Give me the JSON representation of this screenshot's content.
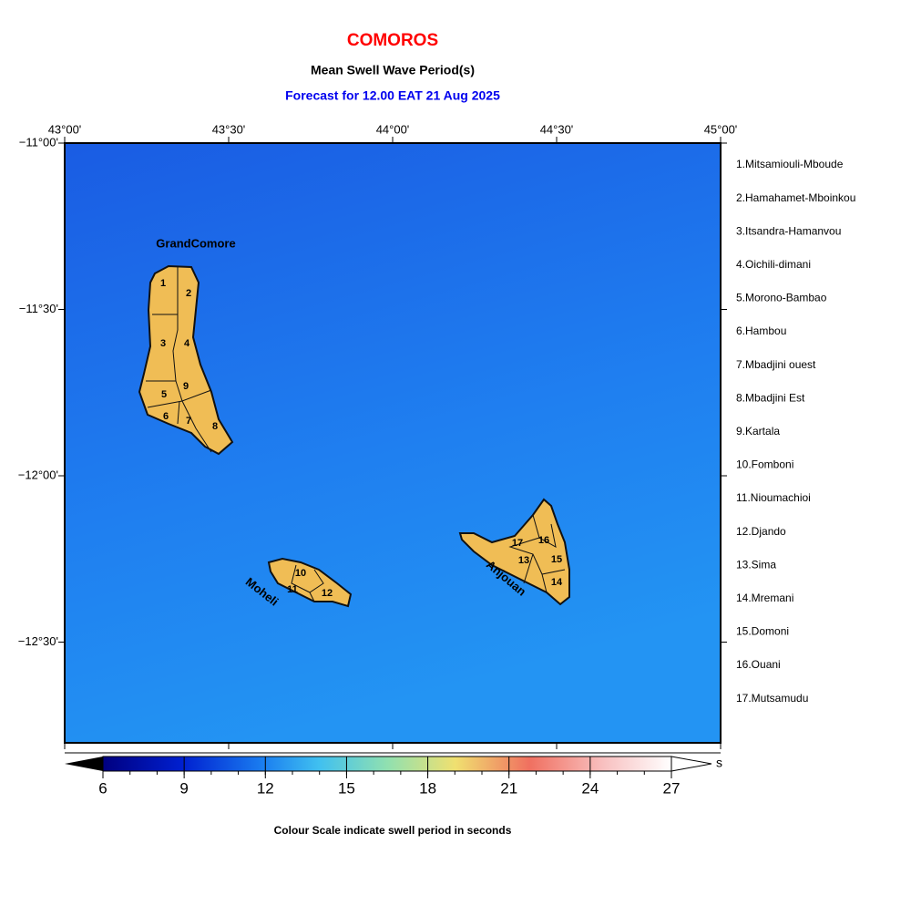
{
  "header": {
    "title": "COMOROS",
    "subtitle": "Mean Swell Wave Period(s)",
    "forecast": "Forecast for  12.00 EAT 21 Aug 2025"
  },
  "map": {
    "lon_labels": [
      "43°00'",
      "43°30'",
      "44°00'",
      "44°30'",
      "45°00'"
    ],
    "lat_labels": [
      "−11°00'",
      "−11°30'",
      "−12°00'",
      "−12°30'"
    ],
    "islands": [
      {
        "name": "GrandComore",
        "regions": [
          "1",
          "2",
          "3",
          "4",
          "5",
          "6",
          "7",
          "8",
          "9"
        ]
      },
      {
        "name": "Moheli",
        "regions": [
          "10",
          "11",
          "12"
        ]
      },
      {
        "name": "Anjouan",
        "regions": [
          "13",
          "14",
          "15",
          "16",
          "17"
        ]
      }
    ]
  },
  "legend": [
    "1.Mitsamiouli-Mboude",
    "2.Hamahamet-Mboinkou",
    "3.Itsandra-Hamanvou",
    "4.Oichili-dimani",
    "5.Morono-Bambao",
    "6.Hambou",
    "7.Mbadjini ouest",
    "8.Mbadjini Est",
    "9.Kartala",
    "10.Fomboni",
    "11.Nioumachioi",
    "12.Djando",
    "13.Sima",
    "14.Mremani",
    "15.Domoni",
    "16.Ouani",
    "17.Mutsamudu"
  ],
  "colorbar": {
    "ticks": [
      6,
      9,
      12,
      15,
      18,
      21,
      24,
      27
    ],
    "unit": "s",
    "caption": "Colour Scale indicate swell period in seconds"
  }
}
